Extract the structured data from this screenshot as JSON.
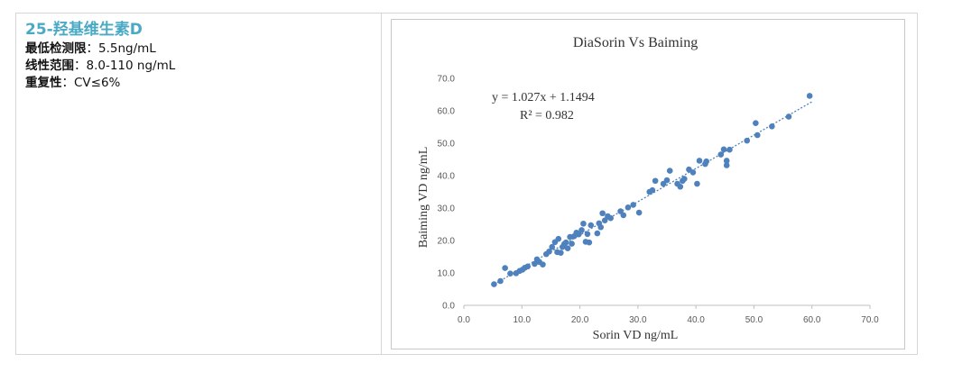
{
  "info": {
    "title": "25-羟基维生素D",
    "rows": [
      {
        "label": "最低检测限",
        "sep": "：",
        "value": "5.5ng/mL"
      },
      {
        "label": "线性范围",
        "sep": "：",
        "value": "8.0-110 ng/mL"
      },
      {
        "label": "重复性",
        "sep": "：",
        "value": "CV≤6%"
      }
    ]
  },
  "chart_data": {
    "type": "scatter",
    "title": "DiaSorin  Vs Baiming",
    "xlabel": "Sorin VD ng/mL",
    "ylabel": "Baiming  VD ng/mL",
    "xlim": [
      0,
      70
    ],
    "ylim": [
      0,
      70
    ],
    "xticks": [
      "0.0",
      "10.0",
      "20.0",
      "30.0",
      "40.0",
      "50.0",
      "60.0",
      "70.0"
    ],
    "yticks": [
      "0.0",
      "10.0",
      "20.0",
      "30.0",
      "40.0",
      "50.0",
      "60.0",
      "70.0"
    ],
    "grid": false,
    "legend": "none",
    "colors": {
      "points": "#4f81bd",
      "trendline": "#4f81bd"
    },
    "equation": "y = 1.027x + 1.1494",
    "r_squared": "R² = 0.982",
    "trendline": {
      "slope": 1.027,
      "intercept": 1.1494,
      "x_range": [
        5.2,
        60
      ]
    },
    "points": [
      [
        5.2,
        6.5
      ],
      [
        6.3,
        7.5
      ],
      [
        7.1,
        11.5
      ],
      [
        8.0,
        9.8
      ],
      [
        9.0,
        9.9
      ],
      [
        9.6,
        10.6
      ],
      [
        10.1,
        11.0
      ],
      [
        10.5,
        11.6
      ],
      [
        11.0,
        12.0
      ],
      [
        12.2,
        12.8
      ],
      [
        12.6,
        14.2
      ],
      [
        13.0,
        13.4
      ],
      [
        13.6,
        12.6
      ],
      [
        14.2,
        15.8
      ],
      [
        14.7,
        16.6
      ],
      [
        15.2,
        18.0
      ],
      [
        15.7,
        19.5
      ],
      [
        16.1,
        16.4
      ],
      [
        16.3,
        20.5
      ],
      [
        16.7,
        16.2
      ],
      [
        17.0,
        18.0
      ],
      [
        17.3,
        18.9
      ],
      [
        17.6,
        19.4
      ],
      [
        17.9,
        17.6
      ],
      [
        18.3,
        21.1
      ],
      [
        18.6,
        19.0
      ],
      [
        19.0,
        21.3
      ],
      [
        19.4,
        22.4
      ],
      [
        19.8,
        21.9
      ],
      [
        20.3,
        23.2
      ],
      [
        20.6,
        25.2
      ],
      [
        21.0,
        19.6
      ],
      [
        21.3,
        22.0
      ],
      [
        21.6,
        19.4
      ],
      [
        21.9,
        24.7
      ],
      [
        23.0,
        22.2
      ],
      [
        23.3,
        25.3
      ],
      [
        23.6,
        24.1
      ],
      [
        23.9,
        28.4
      ],
      [
        24.3,
        26.2
      ],
      [
        24.8,
        27.5
      ],
      [
        25.3,
        26.9
      ],
      [
        27.0,
        29.0
      ],
      [
        27.5,
        27.8
      ],
      [
        28.3,
        30.2
      ],
      [
        29.2,
        31.0
      ],
      [
        30.2,
        28.6
      ],
      [
        32.0,
        35.0
      ],
      [
        32.5,
        35.5
      ],
      [
        33.0,
        38.4
      ],
      [
        34.4,
        37.5
      ],
      [
        35.0,
        38.6
      ],
      [
        35.5,
        41.5
      ],
      [
        36.8,
        37.5
      ],
      [
        37.3,
        36.6
      ],
      [
        37.7,
        38.4
      ],
      [
        38.0,
        39.0
      ],
      [
        38.8,
        41.9
      ],
      [
        39.5,
        41.0
      ],
      [
        40.2,
        37.5
      ],
      [
        40.6,
        44.6
      ],
      [
        41.6,
        43.6
      ],
      [
        41.8,
        44.4
      ],
      [
        44.3,
        46.5
      ],
      [
        44.8,
        48.1
      ],
      [
        45.3,
        44.6
      ],
      [
        45.3,
        43.2
      ],
      [
        45.8,
        48.0
      ],
      [
        48.8,
        50.8
      ],
      [
        50.3,
        56.2
      ],
      [
        50.6,
        52.5
      ],
      [
        53.1,
        55.2
      ],
      [
        56.0,
        58.2
      ],
      [
        59.6,
        64.6
      ]
    ]
  }
}
